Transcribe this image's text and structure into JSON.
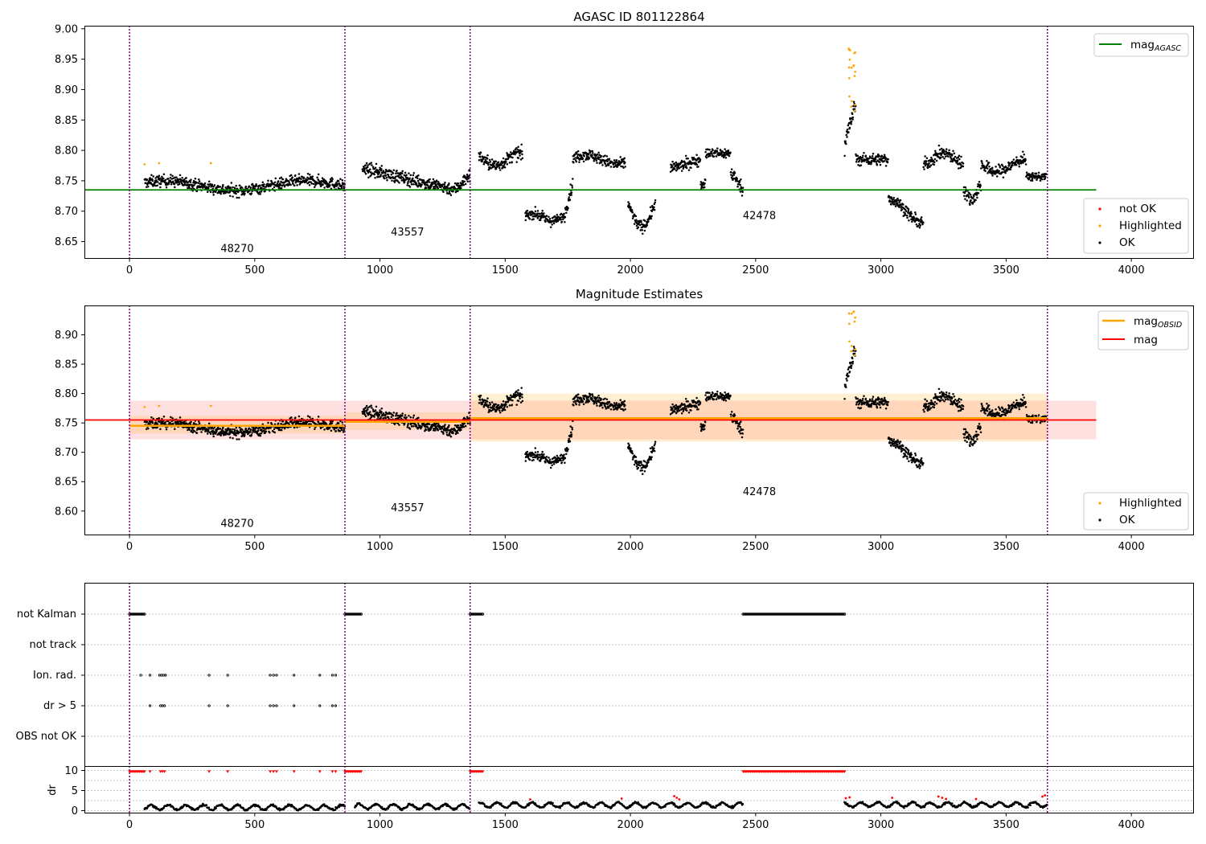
{
  "chart_data": [
    {
      "type": "scatter",
      "title": "AGASC ID 801122864",
      "xlim": [
        -180,
        4250
      ],
      "ylim": [
        8.623,
        9.005
      ],
      "x_ticks": [
        "0",
        "500",
        "1000",
        "1500",
        "2000",
        "2500",
        "3000",
        "3500",
        "4000"
      ],
      "y_ticks": [
        "8.65",
        "8.70",
        "8.75",
        "8.80",
        "8.85",
        "8.90",
        "8.95",
        "9.00"
      ],
      "obsid_boundaries": [
        0,
        860,
        1360,
        3665
      ],
      "obsids": [
        {
          "label": "48270",
          "x": 430,
          "y": 8.633
        },
        {
          "label": "43557",
          "x": 1110,
          "y": 8.66
        },
        {
          "label": "42478",
          "x": 2515,
          "y": 8.687
        }
      ],
      "mag_agasc": 8.735,
      "legend_top": [
        {
          "label": "mag",
          "sub": "AGASC",
          "color": "#008000"
        }
      ],
      "legend_bottom": [
        {
          "label": "not OK",
          "color": "#ff0000"
        },
        {
          "label": "Highlighted",
          "color": "#ffa500"
        },
        {
          "label": "OK",
          "color": "#000000"
        }
      ]
    },
    {
      "type": "scatter",
      "title": "Magnitude Estimates",
      "xlim": [
        -180,
        4250
      ],
      "ylim": [
        8.56,
        8.95
      ],
      "x_ticks": [
        "0",
        "500",
        "1000",
        "1500",
        "2000",
        "2500",
        "3000",
        "3500",
        "4000"
      ],
      "y_ticks": [
        "8.60",
        "8.65",
        "8.70",
        "8.75",
        "8.80",
        "8.85",
        "8.90"
      ],
      "obsid_boundaries": [
        0,
        860,
        1360,
        3665
      ],
      "obsids": [
        {
          "label": "48270",
          "x": 430,
          "y": 8.573
        },
        {
          "label": "43557",
          "x": 1110,
          "y": 8.6
        },
        {
          "label": "42478",
          "x": 2515,
          "y": 8.627
        }
      ],
      "mag": 8.755,
      "mag_band": [
        8.722,
        8.788
      ],
      "mag_obsid": [
        {
          "x0": 0,
          "x1": 860,
          "mag": 8.745,
          "band": [
            8.732,
            8.762
          ]
        },
        {
          "x0": 860,
          "x1": 1360,
          "mag": 8.752,
          "band": [
            8.738,
            8.768
          ]
        },
        {
          "x0": 1360,
          "x1": 3665,
          "mag": 8.758,
          "band": [
            8.718,
            8.8
          ]
        }
      ],
      "legend_top": [
        {
          "label": "mag",
          "sub": "OBSID",
          "color": "#ffa500"
        },
        {
          "label": "mag",
          "sub": "",
          "color": "#ff0000"
        }
      ],
      "legend_bottom": [
        {
          "label": "Highlighted",
          "color": "#ffa500"
        },
        {
          "label": "OK",
          "color": "#000000"
        }
      ]
    },
    {
      "type": "scatter",
      "title": "",
      "xlim": [
        -180,
        4250
      ],
      "x_ticks": [
        "0",
        "500",
        "1000",
        "1500",
        "2000",
        "2500",
        "3000",
        "3500",
        "4000"
      ],
      "flag_rows": [
        "not Kalman",
        "not track",
        "Ion. rad.",
        "dr > 5",
        "OBS not OK"
      ],
      "dr_ylabel": "dr",
      "dr_ticks": [
        "0",
        "5",
        "10"
      ],
      "dr_ylim": [
        -0.5,
        10.5
      ],
      "obsid_boundaries": [
        0,
        860,
        1360,
        3665
      ],
      "flags": {
        "not Kalman": [
          [
            0,
            60
          ],
          [
            860,
            925
          ],
          [
            1360,
            1410
          ],
          [
            2450,
            2855
          ]
        ],
        "Ion. rad.": [
          45,
          82,
          120,
          128,
          136,
          144,
          318,
          392,
          562,
          575,
          587,
          657,
          760,
          810,
          823
        ],
        "dr > 5": [
          82,
          124,
          132,
          140,
          318,
          392,
          562,
          575,
          587,
          657,
          760,
          810,
          823
        ]
      }
    }
  ]
}
